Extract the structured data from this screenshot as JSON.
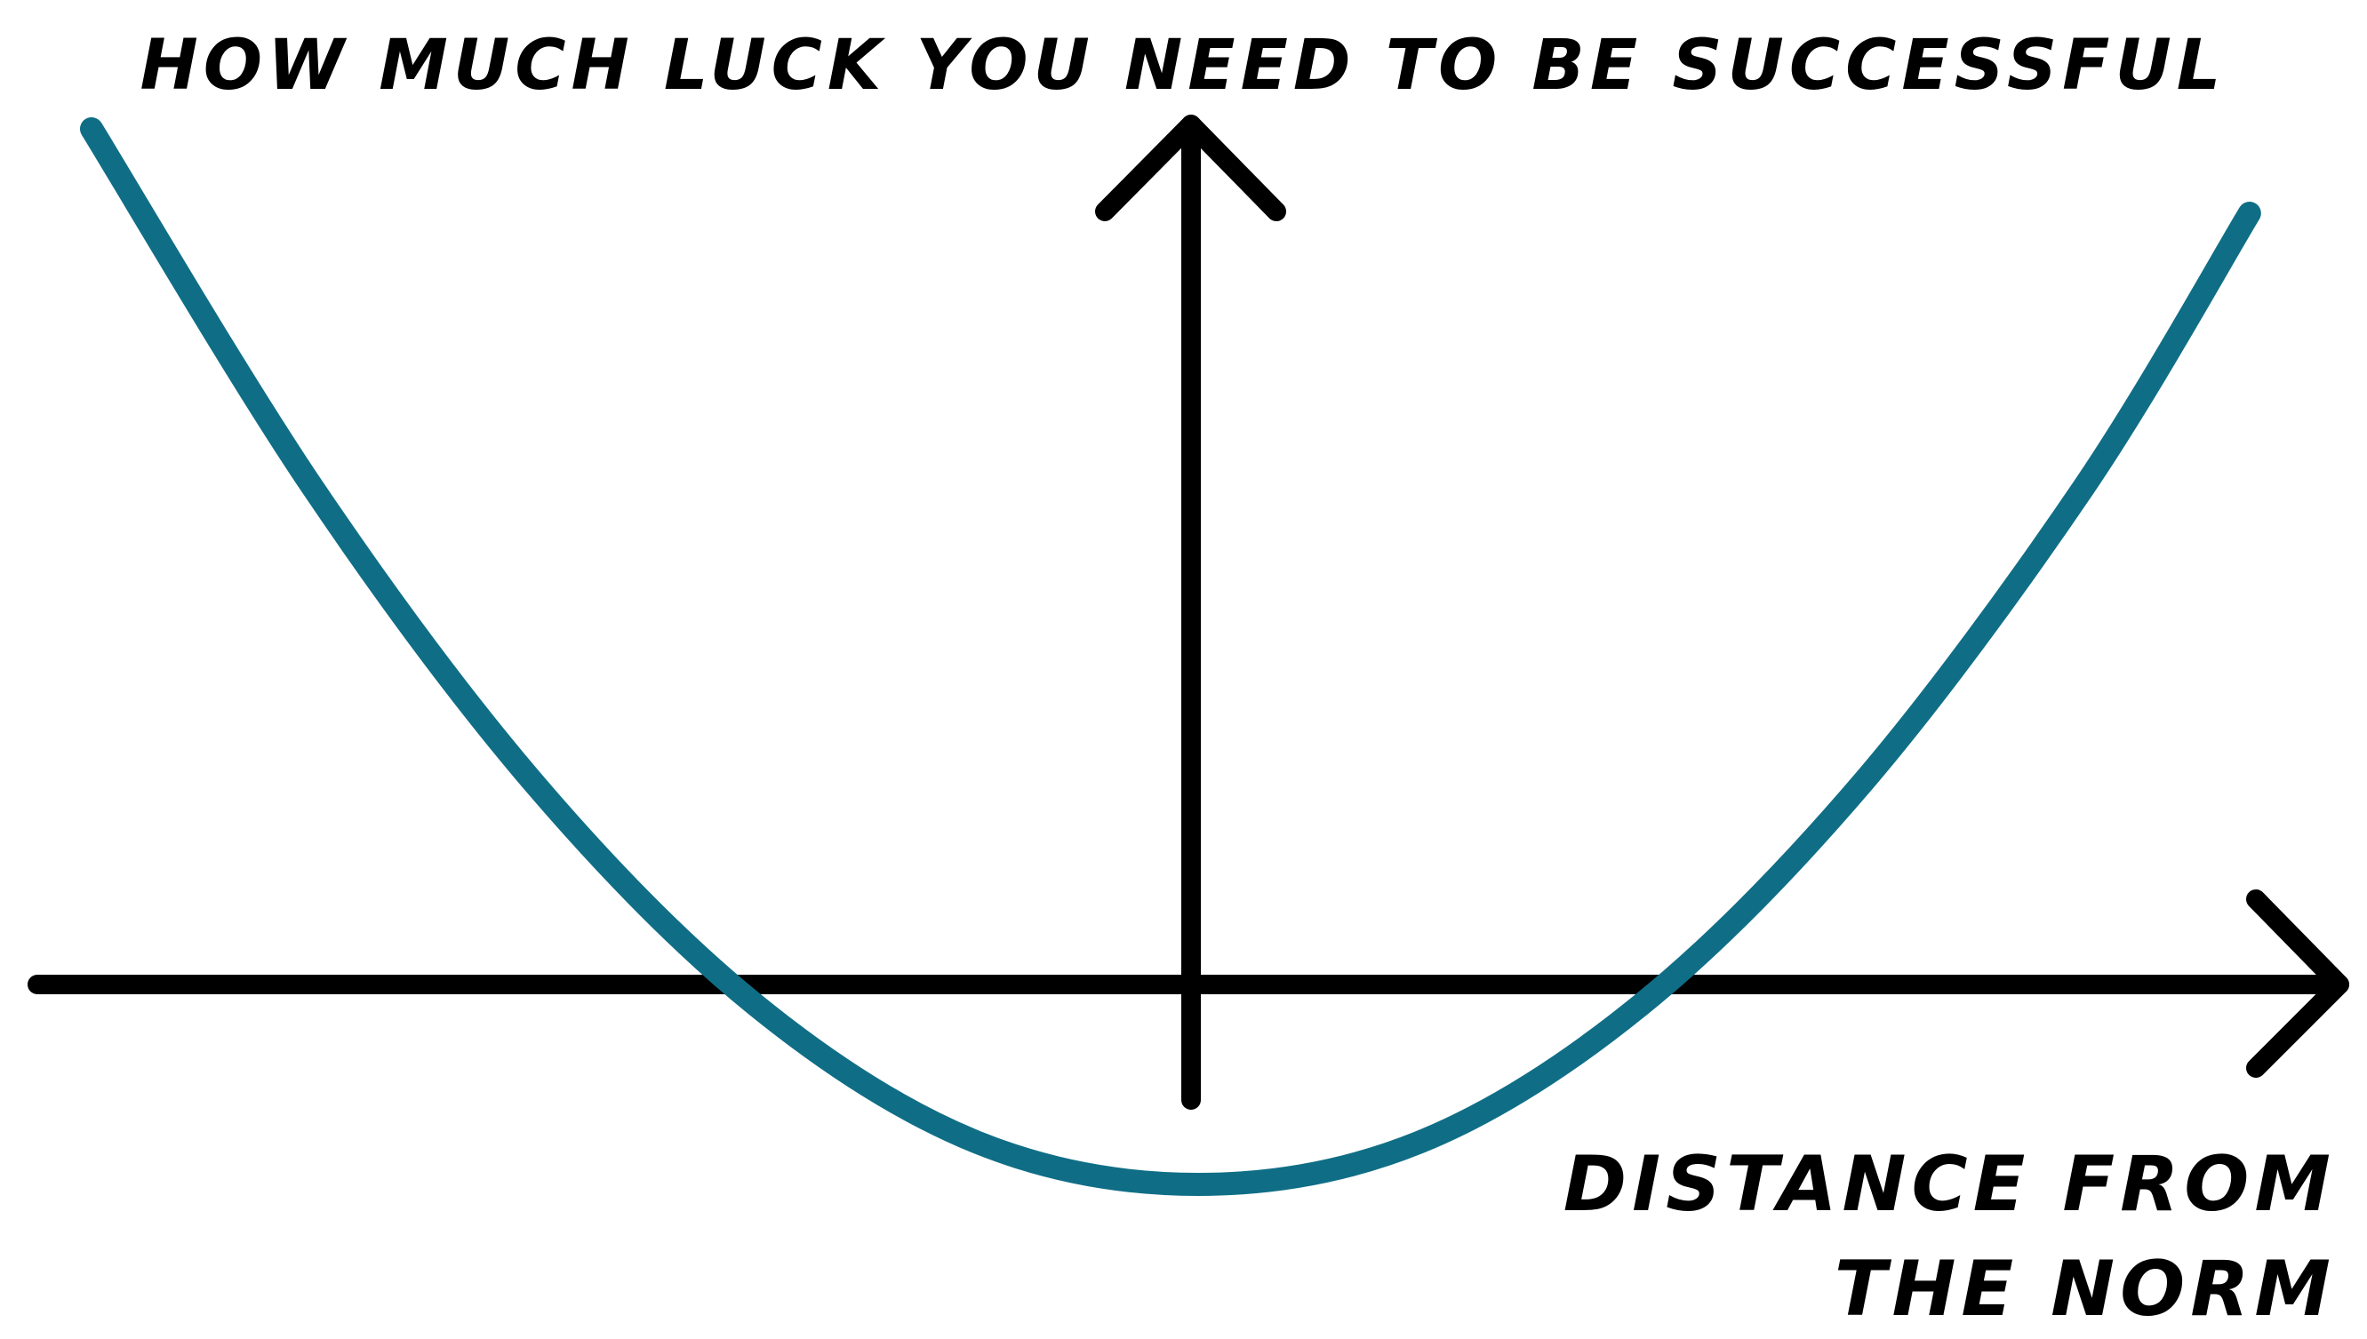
{
  "chart_data": {
    "type": "line",
    "title": "",
    "ylabel": "HOW MUCH LUCK YOU NEED TO BE SUCCESSFUL",
    "xlabel": [
      "DISTANCE FROM",
      "THE NORM"
    ],
    "grid": false,
    "legend": "none",
    "x_axis_arrow": "right",
    "y_axis_arrow": "up",
    "ticks": "none",
    "series": [
      {
        "shape": "U-shaped curve, minimum near the norm, rising steeply on both sides",
        "x": [
          -1.0,
          -0.8,
          -0.6,
          -0.4,
          -0.2,
          0.0,
          0.2,
          0.4,
          0.6,
          0.8,
          0.95
        ],
        "y": [
          1.0,
          0.66,
          0.38,
          0.17,
          0.04,
          0.0,
          0.04,
          0.17,
          0.38,
          0.66,
          0.92
        ]
      }
    ],
    "colors": {
      "curve": "#0f6e86",
      "axes": "#000000",
      "background": "#ffffff"
    }
  }
}
